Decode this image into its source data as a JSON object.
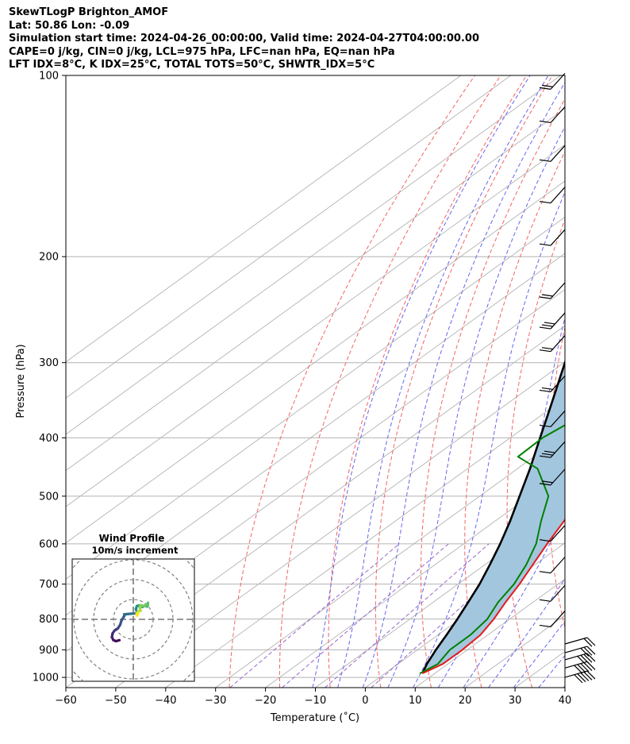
{
  "title_lines": [
    "SkewTLogP Brighton_AMOF",
    "Lat: 50.86   Lon: -0.09",
    "Simulation start time: 2024-04-26_00:00:00, Valid time: 2024-04-27T04:00:00.00",
    "CAPE=0 j/kg, CIN=0 j/kg, LCL=975 hPa, LFC=nan hPa, EQ=nan hPa",
    "LFT IDX=8°C, K IDX=25°C, TOTAL TOTS=50°C, SHWTR_IDX=5°C"
  ],
  "colors": {
    "temperature": "#e41a1c",
    "dewpoint": "#008000",
    "parcel": "#000000",
    "cape_fill": "#a3c6df",
    "dry_adiabat": "#f26464",
    "moist_adiabat": "#6666ee",
    "mixing_ratio": "#9966cc",
    "isotherm": "#b3b3b3"
  },
  "chart_data": {
    "type": "skewt",
    "xlabel": "Temperature (˚C)",
    "ylabel": "Pressure (hPa)",
    "xlim": [
      -60,
      40
    ],
    "ylim": [
      1040,
      100
    ],
    "xticks": [
      -60,
      -50,
      -40,
      -30,
      -20,
      -10,
      0,
      10,
      20,
      30,
      40
    ],
    "xtick_labels": [
      "−60",
      "−50",
      "−40",
      "−30",
      "−20",
      "−10",
      "0",
      "10",
      "20",
      "30",
      "40"
    ],
    "yticks": [
      1000,
      900,
      800,
      700,
      600,
      500,
      400,
      300,
      200,
      100
    ],
    "grid": true,
    "series": [
      {
        "name": "Temperature",
        "pressure": [
          985,
          950,
          900,
          850,
          800,
          750,
          700,
          650,
          600,
          550,
          500,
          450,
          400,
          350,
          310,
          290,
          270,
          250,
          235,
          200,
          180,
          160,
          140,
          120,
          100
        ],
        "values": [
          7.5,
          9,
          9,
          8.5,
          6.8,
          4.5,
          2.3,
          -0.4,
          -3.3,
          -6.2,
          -10,
          -14.5,
          -20,
          -26.3,
          -32.5,
          -33.5,
          -34.5,
          -36.5,
          -39.5,
          -45,
          -50,
          -54,
          -57,
          -60,
          -64
        ]
      },
      {
        "name": "Dewpoint",
        "pressure": [
          985,
          950,
          900,
          850,
          800,
          750,
          700,
          650,
          600,
          550,
          500,
          450,
          430,
          400,
          375,
          350,
          310,
          285,
          260,
          230,
          210,
          190,
          160,
          140,
          100
        ],
        "values": [
          7,
          8,
          6.5,
          6.5,
          5.5,
          3,
          1.2,
          -1.7,
          -5.5,
          -10.8,
          -16.2,
          -26,
          -33.2,
          -33.5,
          -32.2,
          -34,
          -41,
          -42.5,
          -52.5,
          -55,
          -56,
          -64,
          -66,
          -66,
          -74
        ]
      },
      {
        "name": "Parcel",
        "pressure": [
          985,
          950,
          900,
          850,
          800,
          750,
          700,
          650,
          600,
          550,
          500,
          450,
          400,
          350,
          300,
          250,
          200,
          150,
          100
        ],
        "values": [
          7.5,
          5.8,
          3.7,
          1.7,
          -0.5,
          -3,
          -5.7,
          -9,
          -12.7,
          -17,
          -22,
          -27.5,
          -34,
          -41.3,
          -49.8,
          -59.8,
          -71.5,
          -84.5,
          -97
        ]
      }
    ],
    "wind_barbs": [
      {
        "pressure": 1000,
        "speed_kt": 25
      },
      {
        "pressure": 965,
        "speed_kt": 25
      },
      {
        "pressure": 935,
        "speed_kt": 20
      },
      {
        "pressure": 910,
        "speed_kt": 15
      },
      {
        "pressure": 880,
        "speed_kt": 10
      },
      {
        "pressure": 860,
        "speed_kt": 5
      },
      {
        "pressure": 780,
        "speed_kt": 5
      },
      {
        "pressure": 700,
        "speed_kt": 5
      },
      {
        "pressure": 620,
        "speed_kt": 10
      },
      {
        "pressure": 500,
        "speed_kt": 20
      },
      {
        "pressure": 450,
        "speed_kt": 25
      },
      {
        "pressure": 400,
        "speed_kt": 10
      },
      {
        "pressure": 350,
        "speed_kt": 15
      },
      {
        "pressure": 300,
        "speed_kt": 20
      },
      {
        "pressure": 275,
        "speed_kt": 25
      },
      {
        "pressure": 245,
        "speed_kt": 15
      },
      {
        "pressure": 200,
        "speed_kt": 10
      },
      {
        "pressure": 170,
        "speed_kt": 10
      },
      {
        "pressure": 145,
        "speed_kt": 10
      },
      {
        "pressure": 125,
        "speed_kt": 10
      },
      {
        "pressure": 110,
        "speed_kt": 15
      }
    ],
    "hodograph": {
      "title": "Wind Profile",
      "subtitle": "10m/s increment",
      "ring_increment_ms": 10,
      "points_u_v": [
        [
          -7,
          -10.5
        ],
        [
          -8.7,
          -11
        ],
        [
          -10,
          -10.5
        ],
        [
          -10.8,
          -9
        ],
        [
          -10.4,
          -7
        ],
        [
          -9.4,
          -5.6
        ],
        [
          -7.8,
          -4.6
        ],
        [
          -6.6,
          -2.7
        ],
        [
          -6,
          -0.7
        ],
        [
          -4.5,
          1.8
        ],
        [
          -4.6,
          2.5
        ],
        [
          -1.5,
          2.8
        ],
        [
          1.5,
          3
        ],
        [
          2,
          3.5
        ],
        [
          1.3,
          5.1
        ],
        [
          1.8,
          6.7
        ],
        [
          3.2,
          7
        ],
        [
          4.6,
          6.2
        ],
        [
          5.9,
          6.9
        ],
        [
          6.9,
          6.4
        ],
        [
          7.3,
          7.1
        ],
        [
          7.4,
          8.3
        ],
        [
          6.8,
          7.3
        ],
        [
          5.3,
          6.8
        ],
        [
          3.7,
          7.1
        ],
        [
          3.3,
          5.6
        ],
        [
          3.7,
          4.3
        ],
        [
          2.4,
          3.9
        ],
        [
          1.6,
          2.8
        ],
        [
          1.9,
          1.8
        ],
        [
          2.5,
          3
        ]
      ]
    }
  }
}
